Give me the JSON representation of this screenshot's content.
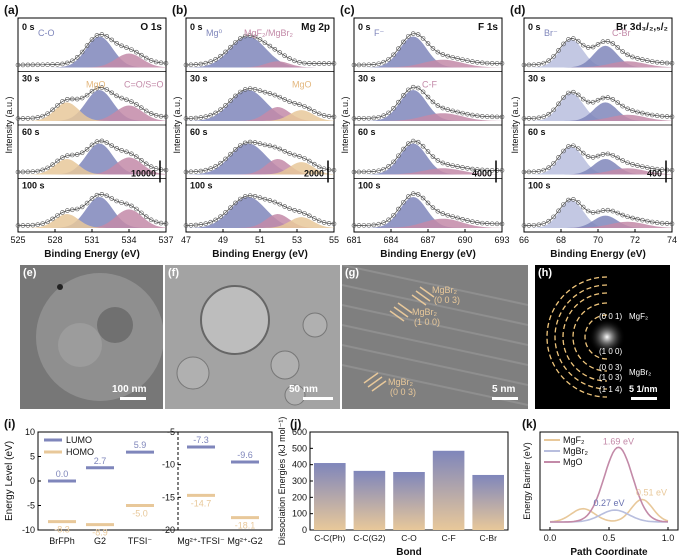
{
  "colors": {
    "blue": "#7f86bb",
    "pink": "#c38aa8",
    "tan": "#e8c89a",
    "lightblue": "#b8bede",
    "gridgrey": "#444",
    "orangeLabel": "#e3b77d",
    "text": "#111"
  },
  "xps": {
    "ylabel": "Intensity (a.u.)",
    "xlabel": "Binding Energy (eV)",
    "times": [
      "0 s",
      "30 s",
      "60 s",
      "100 s"
    ],
    "panels": [
      {
        "letter": "(a)",
        "title": "O 1s",
        "xlim": [
          525,
          537
        ],
        "ticks": [
          "525",
          "528",
          "531",
          "534",
          "537"
        ],
        "scalebar": "10000",
        "labels": [
          {
            "text": "C-O",
            "color": "#7f86bb",
            "row": 0
          },
          {
            "text": "MgO",
            "color": "#e3b77d",
            "row": 1
          },
          {
            "text": "C=O/S=O",
            "color": "#c38aa8",
            "row": 1
          }
        ]
      },
      {
        "letter": "(b)",
        "title": "Mg 2p",
        "xlim": [
          47,
          55
        ],
        "ticks": [
          "47",
          "49",
          "51",
          "53",
          "55"
        ],
        "scalebar": "2000",
        "labels": [
          {
            "text": "Mg⁰",
            "color": "#7f86bb",
            "row": 0
          },
          {
            "text": "MgF₂/MgBr₂",
            "color": "#c38aa8",
            "row": 0
          },
          {
            "text": "MgO",
            "color": "#e3b77d",
            "row": 1
          }
        ]
      },
      {
        "letter": "(c)",
        "title": "F 1s",
        "xlim": [
          681,
          693
        ],
        "ticks": [
          "681",
          "684",
          "687",
          "690",
          "693"
        ],
        "scalebar": "4000",
        "labels": [
          {
            "text": "F⁻",
            "color": "#7f86bb",
            "row": 0
          },
          {
            "text": "C-F",
            "color": "#c38aa8",
            "row": 1
          }
        ]
      },
      {
        "letter": "(d)",
        "title": "Br 3d₃/₂,₅/₂",
        "xlim": [
          66,
          74
        ],
        "ticks": [
          "66",
          "68",
          "70",
          "72",
          "74"
        ],
        "scalebar": "400",
        "labels": [
          {
            "text": "Br⁻",
            "color": "#7f86bb",
            "row": 0
          },
          {
            "text": "C-Br",
            "color": "#c38aa8",
            "row": 0
          }
        ]
      }
    ]
  },
  "images": {
    "e": {
      "letter": "(e)",
      "scalebar": "100 nm"
    },
    "f": {
      "letter": "(f)",
      "scalebar": "50 nm"
    },
    "g": {
      "letter": "(g)",
      "scalebar": "5 nm",
      "annotations": [
        "MgBr₂",
        "(0 0 3)",
        "MgBr₂",
        "(1 0 0)",
        "MgBr₂",
        "(0 0 3)"
      ]
    },
    "h": {
      "letter": "(h)",
      "scalebar": "5 1/nm",
      "rings": [
        "(0 0 1)",
        "MgF₂",
        "(1 0 0)",
        "(0 0 3)",
        "(1 0 3)",
        "MgBr₂",
        "(1 1 4)"
      ]
    }
  },
  "chart_data": [
    {
      "id": "i",
      "type": "scatter",
      "title": "(i)",
      "ylabel": "Energy Level (eV)",
      "legend": [
        "LUMO",
        "HOMO"
      ],
      "categories": [
        "BrFPh",
        "G2",
        "TFSI⁻",
        "Mg²⁺-TFSI⁻",
        "Mg²⁺-G2"
      ],
      "series": [
        {
          "name": "LUMO",
          "values": [
            0.0,
            2.7,
            5.9,
            -7.3,
            -9.6
          ],
          "labels": [
            "0.0",
            "2.7",
            "5.9",
            "-7.3",
            "-9.6"
          ]
        },
        {
          "name": "HOMO",
          "values": [
            -8.3,
            -8.9,
            -5.0,
            -14.7,
            -18.1
          ],
          "labels": [
            "-8.3",
            "-8.9",
            "-5.0",
            "-14.7",
            "-18.1"
          ]
        }
      ],
      "left_axis": {
        "ylim": [
          -10,
          10
        ],
        "ticks": [
          "-10",
          "-5",
          "0",
          "5",
          "10"
        ]
      },
      "right_axis": {
        "ylim": [
          -20,
          -5
        ],
        "ticks": [
          "-20",
          "-15",
          "-10",
          "-5"
        ]
      }
    },
    {
      "id": "j",
      "type": "bar",
      "title": "(j)",
      "xlabel": "Bond",
      "ylabel": "Dissociation Energies (kJ mol⁻¹)",
      "categories": [
        "C-C(Ph)",
        "C-C(G2)",
        "C-O",
        "C-F",
        "C-Br"
      ],
      "values": [
        410,
        362,
        355,
        485,
        337
      ],
      "ylim": [
        0,
        600
      ],
      "ticks": [
        "0",
        "100",
        "200",
        "300",
        "400",
        "500",
        "600"
      ]
    },
    {
      "id": "k",
      "type": "line",
      "title": "(k)",
      "xlabel": "Path Coordinate",
      "ylabel": "Energy Barrier (eV)",
      "legend": [
        "MgF₂",
        "MgBr₂",
        "MgO"
      ],
      "series": [
        {
          "name": "MgF₂",
          "barrier": 0.51,
          "label": "0.51 eV"
        },
        {
          "name": "MgBr₂",
          "barrier": 0.27,
          "label": "0.27 eV"
        },
        {
          "name": "MgO",
          "barrier": 1.69,
          "label": "1.69 eV"
        }
      ],
      "xlim": [
        0,
        1
      ],
      "xticks": [
        "0.0",
        "0.5",
        "1.0"
      ]
    }
  ]
}
